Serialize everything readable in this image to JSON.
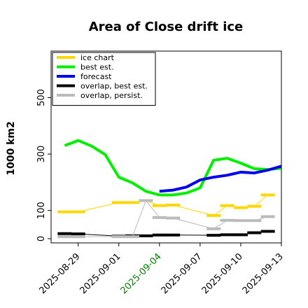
{
  "chart_data": {
    "type": "line",
    "title": "Area of Close drift ice",
    "ylabel": "1000 km2",
    "xlabel": "",
    "ylim": [
      -15,
      665
    ],
    "xlim": [
      "2025-08-27",
      "2025-09-13"
    ],
    "yticks": [
      0,
      100,
      300,
      500
    ],
    "xticks": [
      {
        "label": "2025-08-29",
        "date": "2025-08-29",
        "color": "#000000"
      },
      {
        "label": "2025-09-01",
        "date": "2025-09-01",
        "color": "#000000"
      },
      {
        "label": "2025-09-04",
        "date": "2025-09-04",
        "color": "#008000"
      },
      {
        "label": "2025-09-07",
        "date": "2025-09-07",
        "color": "#000000"
      },
      {
        "label": "2025-09-10",
        "date": "2025-09-10",
        "color": "#000000"
      },
      {
        "label": "2025-09-13",
        "date": "2025-09-13",
        "color": "#000000"
      }
    ],
    "legend_position": "top-left",
    "grid": false,
    "series": [
      {
        "name": "ice chart",
        "color": "#FFD700",
        "style": "markers-thin",
        "x": [
          "2025-08-28",
          "2025-08-29",
          "2025-09-01",
          "2025-09-02",
          "2025-09-03",
          "2025-09-04",
          "2025-09-05",
          "2025-09-08",
          "2025-09-09",
          "2025-09-10",
          "2025-09-11",
          "2025-09-12"
        ],
        "y": [
          95,
          95,
          128,
          128,
          135,
          117,
          119,
          82,
          117,
          110,
          115,
          155
        ]
      },
      {
        "name": "best est.",
        "color": "#00EE00",
        "style": "thick",
        "x": [
          "2025-08-28",
          "2025-08-29",
          "2025-08-30",
          "2025-08-31",
          "2025-09-01",
          "2025-09-02",
          "2025-09-03",
          "2025-09-04",
          "2025-09-05",
          "2025-09-06",
          "2025-09-07",
          "2025-09-08",
          "2025-09-09",
          "2025-09-10",
          "2025-09-11",
          "2025-09-12",
          "2025-09-13"
        ],
        "y": [
          330,
          348,
          328,
          298,
          218,
          198,
          168,
          155,
          155,
          162,
          180,
          278,
          285,
          268,
          248,
          245,
          250
        ]
      },
      {
        "name": "forecast",
        "color": "#0000EE",
        "style": "thick",
        "x": [
          "2025-09-04",
          "2025-09-05",
          "2025-09-06",
          "2025-09-07",
          "2025-09-08",
          "2025-09-09",
          "2025-09-10",
          "2025-09-11",
          "2025-09-12",
          "2025-09-13"
        ],
        "y": [
          168,
          172,
          183,
          208,
          218,
          225,
          236,
          233,
          243,
          257
        ]
      },
      {
        "name": "overlap, best est.",
        "color": "#000000",
        "style": "markers-thin",
        "x": [
          "2025-08-28",
          "2025-08-29",
          "2025-09-01",
          "2025-09-02",
          "2025-09-03",
          "2025-09-04",
          "2025-09-05",
          "2025-09-08",
          "2025-09-09",
          "2025-09-10",
          "2025-09-11",
          "2025-09-12"
        ],
        "y": [
          18,
          17,
          9,
          10,
          10,
          13,
          13,
          12,
          14,
          14,
          21,
          26
        ]
      },
      {
        "name": "overlap, persist.",
        "color": "#BBBBBB",
        "style": "markers-thin",
        "x": [
          "2025-08-28",
          "2025-08-29",
          "2025-09-01",
          "2025-09-02",
          "2025-09-03",
          "2025-09-04",
          "2025-09-05",
          "2025-09-08",
          "2025-09-09",
          "2025-09-10",
          "2025-09-11",
          "2025-09-12"
        ],
        "y": [
          7,
          7,
          7,
          7,
          135,
          75,
          73,
          35,
          65,
          64,
          64,
          78
        ]
      }
    ]
  }
}
